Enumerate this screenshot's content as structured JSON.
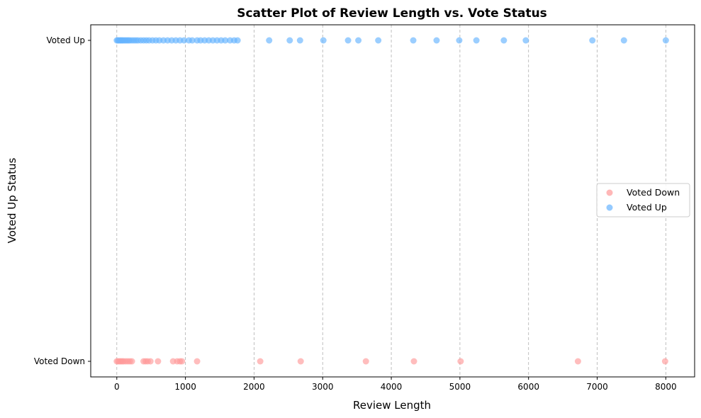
{
  "chart_data": {
    "type": "scatter",
    "title": "Scatter Plot of Review Length vs. Vote Status",
    "xlabel": "Review Length",
    "ylabel": "Voted Up Status",
    "xlim": [
      -380,
      8420
    ],
    "x_ticks": [
      0,
      1000,
      2000,
      3000,
      4000,
      5000,
      6000,
      7000,
      8000
    ],
    "y_categories": [
      "Voted Down",
      "Voted Up"
    ],
    "grid": "x-dashed",
    "legend_position": "center-right",
    "series": [
      {
        "name": "Voted Down",
        "y": "Voted Down",
        "color": "#ff9999",
        "x": [
          0,
          20,
          40,
          60,
          80,
          100,
          130,
          160,
          190,
          220,
          390,
          420,
          450,
          490,
          600,
          820,
          880,
          920,
          950,
          1170,
          2090,
          2680,
          3630,
          4330,
          5010,
          6720,
          7990
        ]
      },
      {
        "name": "Voted Up",
        "y": "Voted Up",
        "color": "#66b3ff",
        "x": [
          0,
          15,
          30,
          45,
          60,
          75,
          90,
          110,
          130,
          150,
          170,
          190,
          220,
          250,
          280,
          310,
          350,
          390,
          430,
          470,
          520,
          570,
          620,
          680,
          740,
          800,
          860,
          920,
          980,
          1050,
          1100,
          1170,
          1220,
          1280,
          1340,
          1400,
          1460,
          1520,
          1580,
          1650,
          1710,
          1760,
          2220,
          2520,
          2670,
          3010,
          3370,
          3520,
          3810,
          4320,
          4660,
          4990,
          5240,
          5640,
          5960,
          6930,
          7390,
          8000
        ]
      }
    ]
  }
}
